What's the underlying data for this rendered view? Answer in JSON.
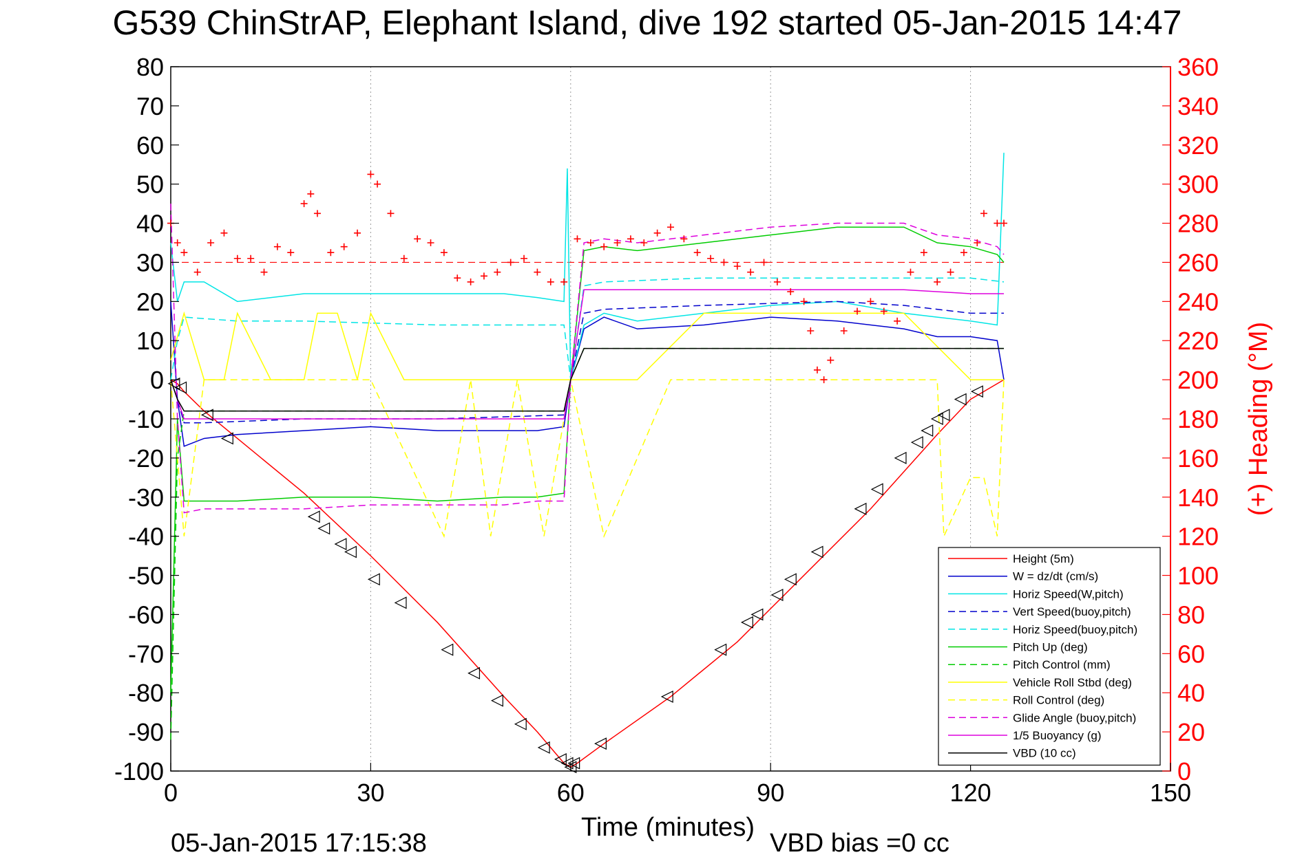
{
  "chart_data": {
    "type": "line",
    "title": "G539 ChinStrAP, Elephant Island, dive 192 started 05-Jan-2015 14:47",
    "xlabel": "Time (minutes)",
    "ylabel_right": "(+) Heading (°M)",
    "xlim": [
      0,
      150
    ],
    "ylim": [
      -100,
      80
    ],
    "ylim_right": [
      0,
      360
    ],
    "xticks": [
      "0",
      "30",
      "60",
      "90",
      "120",
      "150"
    ],
    "yticks": [
      "80",
      "70",
      "60",
      "50",
      "40",
      "30",
      "20",
      "10",
      "0",
      "-10",
      "-20",
      "-30",
      "-40",
      "-50",
      "-60",
      "-70",
      "-80",
      "-90",
      "-100"
    ],
    "yticks_right": [
      "360",
      "340",
      "320",
      "300",
      "280",
      "260",
      "240",
      "220",
      "200",
      "180",
      "160",
      "140",
      "120",
      "100",
      "80",
      "60",
      "40",
      "20",
      "0"
    ],
    "grid": true,
    "legend_position": "bottom-right",
    "footer_left": "05-Jan-2015 17:15:38",
    "footer_right": "VBD bias =0 cc",
    "series": [
      {
        "name": "Height (5m)",
        "color": "#ff0000",
        "dash": "solid",
        "x": [
          0,
          1,
          2,
          5,
          10,
          20,
          30,
          40,
          50,
          55,
          58,
          59,
          60,
          61,
          65,
          75,
          85,
          95,
          105,
          115,
          120,
          123,
          125
        ],
        "y": [
          0,
          -1,
          -3,
          -8,
          -15,
          -29,
          -45,
          -62,
          -81,
          -90,
          -96,
          -98,
          -99,
          -98,
          -93,
          -81,
          -67,
          -50,
          -33,
          -14,
          -5,
          -2,
          0
        ]
      },
      {
        "name": "W = dz/dt (cm/s)",
        "color": "#0000cc",
        "dash": "solid",
        "x": [
          0,
          1,
          2,
          5,
          10,
          20,
          30,
          40,
          50,
          55,
          59,
          60,
          62,
          65,
          70,
          80,
          90,
          100,
          110,
          115,
          120,
          124,
          125
        ],
        "y": [
          20,
          -5,
          -17,
          -15,
          -14,
          -13,
          -12,
          -13,
          -13,
          -13,
          -12,
          0,
          13,
          16,
          13,
          14,
          16,
          15,
          13,
          11,
          11,
          10,
          0
        ]
      },
      {
        "name": "Horiz Speed(W,pitch)",
        "color": "#00e5e5",
        "dash": "solid",
        "x": [
          0,
          1,
          2,
          5,
          10,
          20,
          30,
          40,
          50,
          55,
          59,
          59.5,
          60,
          62,
          65,
          70,
          80,
          90,
          100,
          110,
          115,
          120,
          124,
          125
        ],
        "y": [
          35,
          20,
          25,
          25,
          20,
          22,
          22,
          22,
          22,
          21,
          20,
          54,
          0,
          14,
          17,
          15,
          17,
          19,
          20,
          17,
          16,
          15,
          14,
          58
        ]
      },
      {
        "name": "Vert Speed(buoy,pitch)",
        "color": "#0000cc",
        "dash": "dashed",
        "x": [
          0,
          1,
          2,
          5,
          20,
          40,
          59,
          60,
          62,
          65,
          80,
          100,
          110,
          120,
          125
        ],
        "y": [
          0,
          -5,
          -11,
          -11,
          -10,
          -10,
          -9,
          0,
          17,
          18,
          19,
          20,
          19,
          17,
          17
        ]
      },
      {
        "name": "Horiz Speed(buoy,pitch)",
        "color": "#00e5e5",
        "dash": "dashed",
        "x": [
          0,
          1,
          2,
          10,
          20,
          40,
          59,
          60,
          62,
          65,
          80,
          100,
          110,
          120,
          125
        ],
        "y": [
          0,
          10,
          16,
          15,
          15,
          14,
          14,
          0,
          24,
          25,
          26,
          26,
          26,
          26,
          25
        ]
      },
      {
        "name": "Pitch Up (deg)",
        "color": "#00cc00",
        "dash": "solid",
        "x": [
          0,
          1,
          2,
          5,
          10,
          20,
          30,
          40,
          50,
          55,
          59,
          60,
          62,
          65,
          70,
          80,
          90,
          100,
          110,
          115,
          120,
          124,
          125
        ],
        "y": [
          -80,
          -10,
          -31,
          -31,
          -31,
          -30,
          -30,
          -31,
          -30,
          -30,
          -29,
          0,
          33,
          34,
          33,
          35,
          37,
          39,
          39,
          35,
          34,
          32,
          30
        ]
      },
      {
        "name": "Pitch Control (mm)",
        "color": "#00cc00",
        "dash": "dashed",
        "x": [
          0,
          1,
          2,
          5,
          10,
          20,
          40,
          59,
          60,
          62,
          80,
          100,
          120,
          125
        ],
        "y": [
          -92,
          -20,
          -8,
          -8,
          -8,
          -8,
          -8,
          -8,
          0,
          8,
          8,
          8,
          8,
          8
        ]
      },
      {
        "name": "Vehicle Roll Stbd (deg)",
        "color": "#ffff00",
        "dash": "solid",
        "x": [
          0,
          2,
          5,
          8,
          10,
          15,
          20,
          22,
          25,
          28,
          30,
          35,
          40,
          45,
          50,
          55,
          60,
          65,
          70,
          80,
          90,
          100,
          110,
          120,
          125
        ],
        "y": [
          5,
          17,
          0,
          0,
          17,
          0,
          0,
          17,
          17,
          0,
          17,
          0,
          0,
          0,
          0,
          0,
          0,
          0,
          0,
          17,
          17,
          17,
          17,
          0,
          0
        ]
      },
      {
        "name": "Roll Control (deg)",
        "color": "#ffff00",
        "dash": "dashed",
        "x": [
          0,
          2,
          5,
          10,
          30,
          41,
          45,
          48,
          52,
          56,
          60,
          65,
          75,
          110,
          115,
          116,
          120,
          122,
          124,
          125
        ],
        "y": [
          0,
          -40,
          0,
          0,
          0,
          -40,
          0,
          -40,
          0,
          -40,
          0,
          -40,
          0,
          0,
          0,
          -40,
          -25,
          -25,
          -40,
          0
        ]
      },
      {
        "name": "Glide Angle (buoy,pitch)",
        "color": "#dd00dd",
        "dash": "dashed",
        "x": [
          0,
          1,
          2,
          5,
          10,
          20,
          30,
          40,
          50,
          55,
          59,
          60,
          62,
          65,
          70,
          80,
          90,
          100,
          110,
          115,
          120,
          124,
          125
        ],
        "y": [
          45,
          -10,
          -34,
          -33,
          -33,
          -33,
          -32,
          -32,
          -32,
          -31,
          -31,
          0,
          35,
          36,
          35,
          37,
          39,
          40,
          40,
          37,
          36,
          34,
          32
        ]
      },
      {
        "name": "1/5 Buoyancy (g)",
        "color": "#dd00dd",
        "dash": "solid",
        "x": [
          0,
          1,
          2,
          10,
          20,
          40,
          59,
          60,
          62,
          80,
          100,
          110,
          120,
          125
        ],
        "y": [
          0,
          -5,
          -10,
          -10,
          -10,
          -10,
          -10,
          0,
          23,
          23,
          23,
          23,
          22,
          22
        ]
      },
      {
        "name": "VBD (10 cc)",
        "color": "#000000",
        "dash": "solid",
        "x": [
          0,
          1,
          2,
          10,
          30,
          50,
          59,
          60,
          62,
          80,
          100,
          120,
          125
        ],
        "y": [
          0,
          -5,
          -8,
          -8,
          -8,
          -8,
          -8,
          0,
          8,
          8,
          8,
          8,
          8
        ]
      }
    ],
    "heading_reference": {
      "color": "#ff0000",
      "dash": "dashed",
      "value": 260
    },
    "heading": {
      "color": "#ff0000",
      "marker": "+",
      "axis": "right",
      "x": [
        0,
        1,
        2,
        4,
        6,
        8,
        10,
        12,
        14,
        16,
        18,
        20,
        21,
        22,
        24,
        26,
        28,
        30,
        31,
        33,
        35,
        37,
        39,
        41,
        43,
        45,
        47,
        49,
        51,
        53,
        55,
        57,
        59,
        61,
        63,
        65,
        67,
        69,
        71,
        73,
        75,
        77,
        79,
        81,
        83,
        85,
        87,
        89,
        91,
        93,
        95,
        96,
        97,
        98,
        99,
        101,
        103,
        105,
        107,
        109,
        111,
        113,
        115,
        117,
        119,
        121,
        122,
        124,
        125
      ],
      "y": [
        280,
        270,
        265,
        255,
        270,
        275,
        262,
        262,
        255,
        268,
        265,
        290,
        295,
        285,
        265,
        268,
        275,
        305,
        300,
        285,
        262,
        272,
        270,
        265,
        252,
        250,
        253,
        255,
        260,
        262,
        255,
        250,
        250,
        272,
        270,
        268,
        270,
        272,
        270,
        275,
        278,
        272,
        265,
        262,
        260,
        258,
        255,
        260,
        250,
        245,
        240,
        225,
        205,
        200,
        210,
        225,
        235,
        240,
        235,
        230,
        255,
        265,
        250,
        255,
        265,
        270,
        285,
        280,
        280
      ]
    },
    "markers": {
      "symbol": "triangle",
      "color": "#000000",
      "x": [
        0.5,
        1.5,
        5.5,
        8.5,
        21.5,
        23,
        25.5,
        27,
        30.5,
        34.5,
        41.5,
        45.5,
        49,
        52.5,
        56,
        58.5,
        59.5,
        60,
        60.5,
        64.5,
        74.5,
        82.5,
        86.5,
        88,
        91,
        93,
        97,
        103.5,
        106,
        109.5,
        112,
        113.5,
        115,
        116,
        118.5,
        121
      ],
      "y": [
        -1,
        -2,
        -9,
        -15,
        -35,
        -38,
        -42,
        -44,
        -51,
        -57,
        -69,
        -75,
        -82,
        -88,
        -94,
        -97,
        -98,
        -99,
        -98,
        -93,
        -81,
        -69,
        -62,
        -60,
        -55,
        -51,
        -44,
        -33,
        -28,
        -20,
        -16,
        -13,
        -10,
        -9,
        -5,
        -3
      ]
    }
  }
}
